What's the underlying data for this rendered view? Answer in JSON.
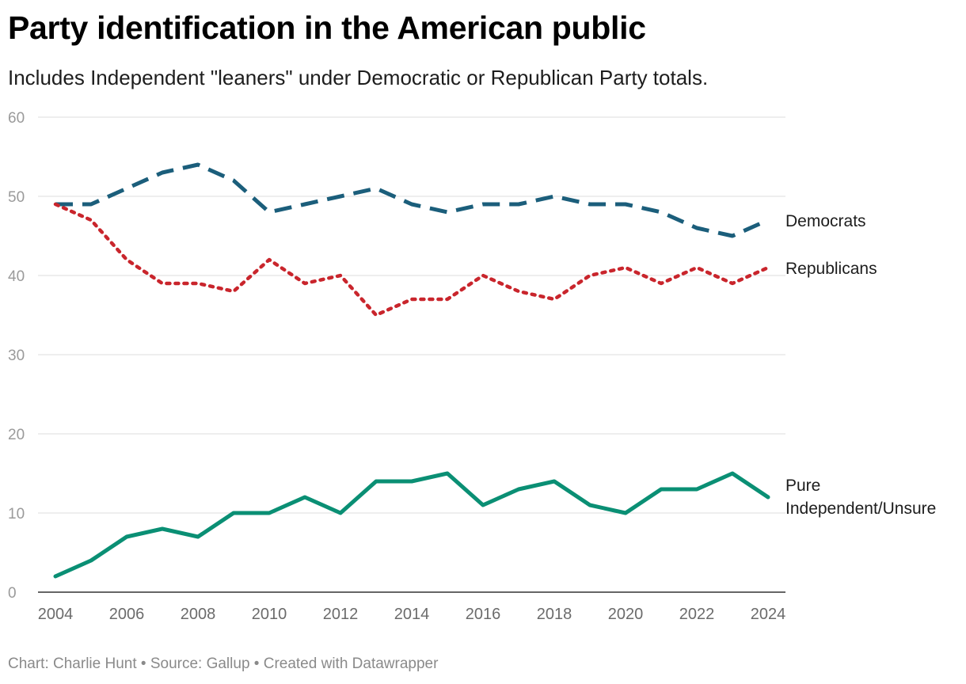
{
  "header": {
    "title": "Party identification in the American public",
    "subtitle": "Includes Independent \"leaners\" under Democratic or Republican Party totals."
  },
  "footer": {
    "text": "Chart: Charlie Hunt • Source: Gallup • Created with Datawrapper"
  },
  "chart_data": {
    "type": "line",
    "title": "Party identification in the American public",
    "subtitle": "Includes Independent \"leaners\" under Democratic or Republican Party totals.",
    "xlabel": "",
    "ylabel": "",
    "x": [
      2004,
      2005,
      2006,
      2007,
      2008,
      2009,
      2010,
      2011,
      2012,
      2013,
      2014,
      2015,
      2016,
      2017,
      2018,
      2019,
      2020,
      2021,
      2022,
      2023,
      2024
    ],
    "xticks": [
      "2004",
      "2006",
      "2008",
      "2010",
      "2012",
      "2014",
      "2016",
      "2018",
      "2020",
      "2022",
      "2024"
    ],
    "ylim": [
      0,
      60
    ],
    "yticks": [
      "0",
      "10",
      "20",
      "30",
      "40",
      "50",
      "60"
    ],
    "grid": true,
    "legend": "direct labels at right end of lines",
    "series": [
      {
        "name": "Democrats",
        "label_lines": [
          "Democrats"
        ],
        "color": "#1b5e7b",
        "style": "dashed",
        "values": [
          49,
          49,
          51,
          53,
          54,
          52,
          48,
          49,
          50,
          51,
          49,
          48,
          49,
          49,
          50,
          49,
          49,
          48,
          46,
          45,
          47
        ]
      },
      {
        "name": "Republicans",
        "label_lines": [
          "Republicans"
        ],
        "color": "#c9252c",
        "style": "dotted",
        "values": [
          49,
          47,
          42,
          39,
          39,
          38,
          42,
          39,
          40,
          35,
          37,
          37,
          40,
          38,
          37,
          40,
          41,
          39,
          41,
          39,
          41
        ]
      },
      {
        "name": "Pure Independent/Unsure",
        "label_lines": [
          "Pure",
          "Independent/Unsure"
        ],
        "color": "#0a8f74",
        "style": "solid",
        "values": [
          2,
          4,
          7,
          8,
          7,
          10,
          10,
          12,
          10,
          14,
          14,
          15,
          11,
          13,
          14,
          11,
          10,
          13,
          13,
          15,
          12
        ]
      }
    ]
  }
}
